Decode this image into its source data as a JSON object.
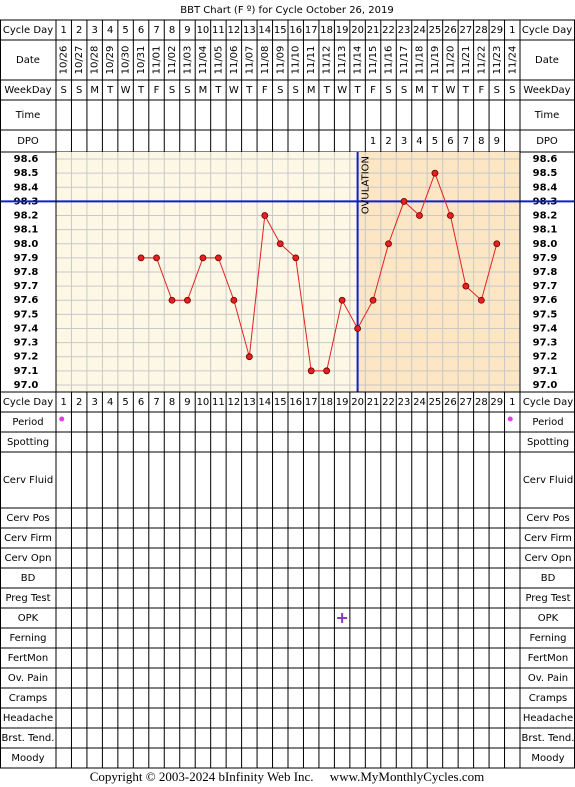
{
  "chart_data": {
    "type": "line",
    "title": "BBT Chart (F º) for Cycle October 26, 2019",
    "top_rows": [
      "Cycle Day",
      "Date",
      "WeekDay",
      "Time",
      "DPO"
    ],
    "bottom_rows": [
      "Cycle Day",
      "Period",
      "Spotting",
      "Cerv Fluid",
      "Cerv Pos",
      "Cerv Firm",
      "Cerv Opn",
      "BD",
      "Preg Test",
      "OPK",
      "Ferning",
      "FertMon",
      "Ov. Pain",
      "Cramps",
      "Headache",
      "Brst. Tend.",
      "Moody"
    ],
    "categories": [
      1,
      2,
      3,
      4,
      5,
      6,
      7,
      8,
      9,
      10,
      11,
      12,
      13,
      14,
      15,
      16,
      17,
      18,
      19,
      20,
      21,
      22,
      23,
      24,
      25,
      26,
      27,
      28,
      29,
      1
    ],
    "dates": [
      "10/26",
      "10/27",
      "10/28",
      "10/29",
      "10/30",
      "10/31",
      "11/01",
      "11/02",
      "11/03",
      "11/04",
      "11/05",
      "11/06",
      "11/07",
      "11/08",
      "11/09",
      "11/10",
      "11/11",
      "11/12",
      "11/13",
      "11/14",
      "11/15",
      "11/16",
      "11/17",
      "11/18",
      "11/19",
      "11/20",
      "11/21",
      "11/22",
      "11/23",
      "11/24"
    ],
    "weekdays": [
      "S",
      "S",
      "M",
      "T",
      "W",
      "T",
      "F",
      "S",
      "S",
      "M",
      "T",
      "W",
      "T",
      "F",
      "S",
      "S",
      "M",
      "T",
      "W",
      "T",
      "F",
      "S",
      "S",
      "M",
      "T",
      "W",
      "T",
      "F",
      "S",
      "S"
    ],
    "dpo": [
      null,
      null,
      null,
      null,
      null,
      null,
      null,
      null,
      null,
      null,
      null,
      null,
      null,
      null,
      null,
      null,
      null,
      null,
      null,
      null,
      1,
      2,
      3,
      4,
      5,
      6,
      7,
      8,
      9,
      null
    ],
    "values": [
      null,
      null,
      null,
      null,
      null,
      97.9,
      97.9,
      97.6,
      97.6,
      97.9,
      97.9,
      97.6,
      97.2,
      98.2,
      98.0,
      97.9,
      97.1,
      97.1,
      97.6,
      97.4,
      97.6,
      98.0,
      98.3,
      98.2,
      98.5,
      98.2,
      97.7,
      97.6,
      98.0,
      null
    ],
    "color": "#e52020",
    "ylim": [
      96.95,
      98.65
    ],
    "yticks": [
      98.6,
      98.5,
      98.4,
      98.3,
      98.2,
      98.1,
      {
        "value": 98,
        "label": "98.0"
      },
      97.9,
      97.8,
      97.7,
      97.6,
      97.5,
      97.4,
      97.3,
      97.2,
      97.1,
      {
        "value": 97,
        "label": "97.0"
      }
    ],
    "grid": true,
    "coverline": 98.3,
    "ovulation_label": "OVULATION",
    "copyright": "Copyright © 2003-2024 bInfinity Web Inc.     www.MyMonthlyCycles.com"
  }
}
